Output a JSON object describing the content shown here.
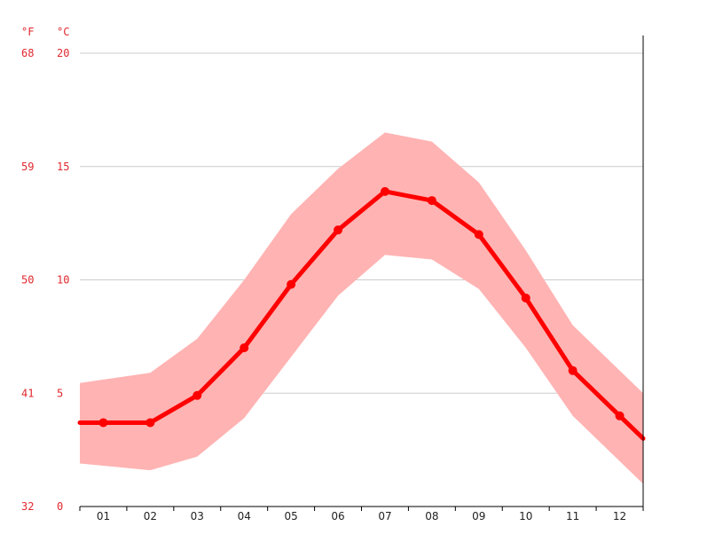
{
  "chart_data": {
    "type": "line",
    "units": {
      "left": "°F",
      "right": "°C"
    },
    "categories": [
      "01",
      "02",
      "03",
      "04",
      "05",
      "06",
      "07",
      "08",
      "09",
      "10",
      "11",
      "12"
    ],
    "ylim": [
      0,
      20
    ],
    "y_ticks_c": [
      "0",
      "5",
      "10",
      "15",
      "20"
    ],
    "y_ticks_f": [
      "32",
      "41",
      "50",
      "59",
      "68"
    ],
    "grid": true,
    "series": [
      {
        "values": [
          3.7,
          3.7,
          4.9,
          7.0,
          9.8,
          12.2,
          13.9,
          13.5,
          12.0,
          9.2,
          6.0,
          4.0
        ]
      }
    ],
    "band": {
      "low": [
        1.8,
        1.6,
        2.2,
        3.9,
        6.6,
        9.3,
        11.1,
        10.9,
        9.6,
        7.0,
        4.0,
        2.0
      ],
      "high": [
        5.6,
        5.9,
        7.4,
        10.0,
        12.9,
        14.9,
        16.5,
        16.1,
        14.3,
        11.3,
        8.0,
        6.0
      ]
    },
    "colors": {
      "line": "#ff0000",
      "band": "#ffb3b3",
      "grid": "#cccccc",
      "label": "#e0282e"
    }
  }
}
